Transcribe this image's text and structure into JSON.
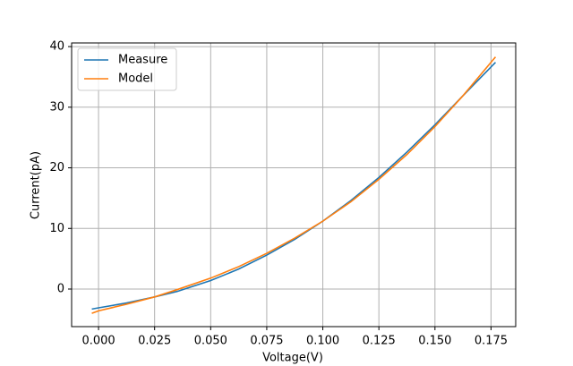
{
  "chart_data": {
    "type": "line",
    "xlabel": "Voltage(V)",
    "ylabel": "Current(pA)",
    "x": [
      -0.003,
      0.0,
      0.0125,
      0.025,
      0.035,
      0.05,
      0.0625,
      0.075,
      0.0875,
      0.1,
      0.1125,
      0.125,
      0.1375,
      0.15,
      0.1625,
      0.177
    ],
    "series": [
      {
        "name": "Measure",
        "color": "#1f77b4",
        "values": [
          -3.3,
          -3.1,
          -2.3,
          -1.3,
          -0.4,
          1.4,
          3.3,
          5.6,
          8.2,
          11.2,
          14.6,
          18.4,
          22.6,
          27.1,
          31.9,
          37.4
        ]
      },
      {
        "name": "Model",
        "color": "#ff7f0e",
        "values": [
          -4.0,
          -3.6,
          -2.5,
          -1.3,
          -0.1,
          1.8,
          3.7,
          5.9,
          8.4,
          11.2,
          14.4,
          18.1,
          22.2,
          26.8,
          31.9,
          38.3
        ]
      }
    ],
    "xlim": [
      -0.012,
      0.186
    ],
    "ylim": [
      -6.2,
      40.6
    ],
    "xticks": [
      {
        "value": 0,
        "label": "0.000"
      },
      {
        "value": 0.025,
        "label": "0.025"
      },
      {
        "value": 0.05,
        "label": "0.050"
      },
      {
        "value": 0.075,
        "label": "0.075"
      },
      {
        "value": 0.1,
        "label": "0.100"
      },
      {
        "value": 0.125,
        "label": "0.125"
      },
      {
        "value": 0.15,
        "label": "0.150"
      },
      {
        "value": 0.175,
        "label": "0.175"
      }
    ],
    "yticks": [
      0,
      10,
      20,
      30,
      40
    ],
    "grid": true,
    "legend": "upper-left"
  }
}
